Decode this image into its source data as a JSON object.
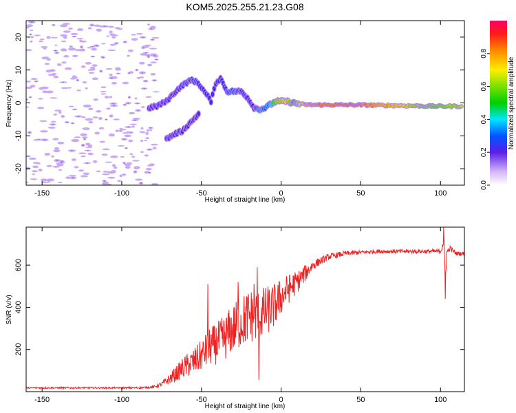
{
  "title": "KOM5.2025.255.21.23.G08",
  "colors": {
    "snr_line": "#ee2222",
    "noise_speckle": "#c9a8f5",
    "noise_core": "#9b66ee",
    "axis": "#000000",
    "background": "#ffffff"
  },
  "chart_data": [
    {
      "type": "heatmap",
      "title": "KOM5.2025.255.21.23.G08",
      "xlabel": "Height of straight line (km)",
      "ylabel": "Frequency (Hz)",
      "xlim": [
        -160,
        115
      ],
      "ylim": [
        -25,
        25
      ],
      "xticks": [
        -150,
        -100,
        -50,
        0,
        50,
        100
      ],
      "yticks": [
        -20,
        -10,
        0,
        10,
        20
      ],
      "colorbar": {
        "label": "Normalized spectral amplitude",
        "range": [
          0,
          1
        ],
        "ticks": [
          0.0,
          0.2,
          0.4,
          0.6,
          0.8
        ],
        "colormap": "rainbow",
        "stops": [
          {
            "v": 0.0,
            "c": "#ffffff"
          },
          {
            "v": 0.08,
            "c": "#d6b8f8"
          },
          {
            "v": 0.2,
            "c": "#5a1fe6"
          },
          {
            "v": 0.3,
            "c": "#0055ff"
          },
          {
            "v": 0.4,
            "c": "#00e5ff"
          },
          {
            "v": 0.5,
            "c": "#00d000"
          },
          {
            "v": 0.6,
            "c": "#7ae000"
          },
          {
            "v": 0.7,
            "c": "#ffee00"
          },
          {
            "v": 0.82,
            "c": "#ff8800"
          },
          {
            "v": 0.92,
            "c": "#ff1a1a"
          },
          {
            "v": 1.0,
            "c": "#ff0066"
          }
        ]
      },
      "signal_track": [
        {
          "x": -83,
          "f": -1.5,
          "a": 0.25
        },
        {
          "x": -78,
          "f": -1,
          "a": 0.3
        },
        {
          "x": -72,
          "f": 0.5,
          "a": 0.3
        },
        {
          "x": -68,
          "f": 2.5,
          "a": 0.3
        },
        {
          "x": -64,
          "f": 4.5,
          "a": 0.3
        },
        {
          "x": -60,
          "f": 6,
          "a": 0.33
        },
        {
          "x": -56,
          "f": 7,
          "a": 0.35
        },
        {
          "x": -52,
          "f": 6,
          "a": 0.32
        },
        {
          "x": -49,
          "f": 4,
          "a": 0.3
        },
        {
          "x": -46,
          "f": 2,
          "a": 0.3
        },
        {
          "x": -44,
          "f": 0.5,
          "a": 0.3
        },
        {
          "x": -41,
          "f": 6,
          "a": 0.3
        },
        {
          "x": -38,
          "f": 7.5,
          "a": 0.3
        },
        {
          "x": -34,
          "f": 3.5,
          "a": 0.32
        },
        {
          "x": -29,
          "f": 3.5,
          "a": 0.4
        },
        {
          "x": -25,
          "f": 3.5,
          "a": 0.33
        },
        {
          "x": -21,
          "f": 1.5,
          "a": 0.3
        },
        {
          "x": -17,
          "f": -1.5,
          "a": 0.3
        },
        {
          "x": -13,
          "f": -2,
          "a": 0.45
        },
        {
          "x": -10,
          "f": -1.5,
          "a": 0.4
        },
        {
          "x": -7,
          "f": -0.5,
          "a": 0.45
        },
        {
          "x": -3,
          "f": 0.5,
          "a": 0.7
        },
        {
          "x": 3,
          "f": 0.5,
          "a": 0.8
        },
        {
          "x": 8,
          "f": 0,
          "a": 0.6
        },
        {
          "x": 14,
          "f": -0.5,
          "a": 0.85
        },
        {
          "x": 20,
          "f": -0.6,
          "a": 0.92
        },
        {
          "x": 30,
          "f": -0.6,
          "a": 0.95
        },
        {
          "x": 45,
          "f": -0.6,
          "a": 0.95
        },
        {
          "x": 60,
          "f": -0.7,
          "a": 0.88
        },
        {
          "x": 75,
          "f": -0.8,
          "a": 0.82
        },
        {
          "x": 85,
          "f": -0.9,
          "a": 0.7
        },
        {
          "x": 95,
          "f": -1,
          "a": 0.65
        },
        {
          "x": 105,
          "f": -1,
          "a": 0.7
        },
        {
          "x": 114,
          "f": -1,
          "a": 0.72
        }
      ],
      "lower_branch": [
        {
          "x": -72,
          "f": -11,
          "a": 0.28
        },
        {
          "x": -67,
          "f": -9.5,
          "a": 0.3
        },
        {
          "x": -62,
          "f": -8.5,
          "a": 0.28
        },
        {
          "x": -55,
          "f": -5,
          "a": 0.26
        },
        {
          "x": -51,
          "f": -3,
          "a": 0.25
        }
      ],
      "noise_region": {
        "x_range": [
          -160,
          -78
        ],
        "f_range": [
          -25,
          25
        ],
        "level": 0.08
      }
    },
    {
      "type": "line",
      "xlabel": "Height of straight line (km)",
      "ylabel": "SNR (v/v)",
      "xlim": [
        -160,
        115
      ],
      "ylim": [
        0,
        780
      ],
      "xticks": [
        -150,
        -100,
        -50,
        0,
        50,
        100
      ],
      "yticks": [
        200,
        400,
        600
      ],
      "series": [
        {
          "name": "SNR",
          "x": [
            -160,
            -140,
            -120,
            -100,
            -90,
            -80,
            -75,
            -70,
            -65,
            -60,
            -55,
            -50,
            -45,
            -40,
            -35,
            -30,
            -25,
            -20,
            -15,
            -10,
            -5,
            0,
            5,
            10,
            15,
            20,
            25,
            30,
            40,
            50,
            60,
            70,
            80,
            90,
            100,
            102,
            103,
            104,
            106,
            110,
            115
          ],
          "values": [
            18,
            18,
            18,
            18,
            18,
            22,
            35,
            60,
            90,
            120,
            140,
            170,
            210,
            230,
            260,
            300,
            330,
            360,
            360,
            380,
            400,
            450,
            490,
            520,
            560,
            600,
            620,
            640,
            655,
            660,
            665,
            665,
            665,
            665,
            665,
            720,
            540,
            660,
            680,
            655,
            655
          ],
          "noise_amplitude": [
            4,
            4,
            4,
            4,
            4,
            6,
            12,
            25,
            40,
            55,
            65,
            75,
            90,
            100,
            110,
            120,
            125,
            130,
            130,
            120,
            110,
            90,
            70,
            55,
            40,
            25,
            18,
            15,
            12,
            10,
            10,
            10,
            10,
            10,
            12,
            40,
            40,
            15,
            12,
            10,
            10
          ],
          "spikes": [
            {
              "x": -46,
              "y": 510
            },
            {
              "x": -15,
              "y": 590
            },
            {
              "x": -14,
              "y": 55
            },
            {
              "x": -27,
              "y": 520
            },
            {
              "x": -17,
              "y": 510
            },
            {
              "x": 102,
              "y": 780
            },
            {
              "x": 103,
              "y": 440
            }
          ]
        }
      ]
    }
  ]
}
